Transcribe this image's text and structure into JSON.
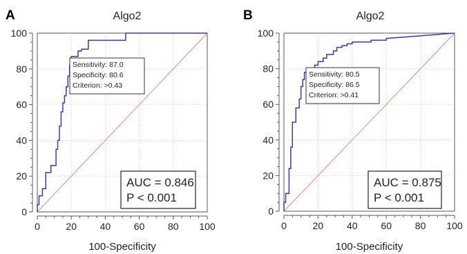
{
  "chart_data": [
    {
      "type": "line",
      "panel": "A",
      "title": "Algo2",
      "xlabel": "100-Specificity",
      "ylabel": "",
      "xlim": [
        0,
        100
      ],
      "ylim": [
        0,
        100
      ],
      "xticks": [
        "0",
        "20",
        "40",
        "60",
        "80",
        "100"
      ],
      "yticks": [
        "0",
        "20",
        "40",
        "60",
        "80",
        "100"
      ],
      "grid": true,
      "series": [
        {
          "color": "#3a3aa0",
          "x": [
            0,
            0,
            1,
            1,
            3,
            3,
            5,
            5,
            8,
            8,
            11,
            11,
            12,
            12,
            13,
            13,
            14,
            14,
            15,
            15,
            16,
            16,
            17,
            17,
            18,
            18,
            19,
            19,
            20,
            20,
            21,
            21,
            24,
            24,
            26,
            26,
            30,
            30,
            40,
            40,
            50,
            50,
            52,
            52,
            100
          ],
          "y": [
            0,
            4,
            4,
            9,
            9,
            13,
            13,
            22,
            22,
            26,
            26,
            35,
            35,
            40,
            40,
            48,
            48,
            56,
            56,
            61,
            61,
            65,
            65,
            70,
            70,
            76,
            76,
            82,
            82,
            87,
            87,
            87,
            87,
            90,
            90,
            91,
            91,
            96,
            96,
            96,
            96,
            96,
            96,
            100,
            100
          ]
        },
        {
          "color": "#e08a80",
          "x": [
            0,
            100
          ],
          "y": [
            0,
            100
          ]
        }
      ],
      "annotations": {
        "criterion_box": [
          "Sensitivity: 87.0",
          "Specificity: 80.6",
          "Criterion: >0.43"
        ],
        "auc_box": [
          "AUC = 0.846",
          "P < 0.001"
        ]
      }
    },
    {
      "type": "line",
      "panel": "B",
      "title": "Algo2",
      "xlabel": "100-Specificity",
      "ylabel": "",
      "xlim": [
        0,
        100
      ],
      "ylim": [
        0,
        100
      ],
      "xticks": [
        "0",
        "20",
        "40",
        "60",
        "80",
        "100"
      ],
      "yticks": [
        "0",
        "20",
        "40",
        "60",
        "80",
        "100"
      ],
      "grid": true,
      "series": [
        {
          "color": "#3a3aa0",
          "x": [
            0,
            0,
            1,
            1,
            3,
            3,
            4,
            4,
            5,
            5,
            7,
            7,
            9,
            9,
            10,
            10,
            11,
            11,
            12,
            12,
            13.5,
            13.5,
            18,
            18,
            20,
            20,
            23,
            23,
            25,
            25,
            29,
            29,
            31,
            31,
            34,
            34,
            37,
            37,
            40,
            40,
            51,
            51,
            60,
            60,
            100
          ],
          "y": [
            0,
            5,
            5,
            10,
            10,
            24,
            24,
            36,
            36,
            50,
            50,
            58,
            58,
            63,
            63,
            70,
            70,
            74,
            74,
            78,
            78,
            80.5,
            80.5,
            82,
            82,
            84,
            84,
            86,
            86,
            88,
            88,
            90,
            90,
            92,
            92,
            93,
            93,
            94,
            94,
            95,
            95,
            96,
            96,
            97,
            100
          ]
        },
        {
          "color": "#e08a80",
          "x": [
            0,
            100
          ],
          "y": [
            0,
            100
          ]
        }
      ],
      "annotations": {
        "criterion_box": [
          "Sensitivity: 80.5",
          "Specificity: 86.5",
          "Criterion: >0.41"
        ],
        "auc_box": [
          "AUC = 0.875",
          "P < 0.001"
        ]
      }
    }
  ]
}
